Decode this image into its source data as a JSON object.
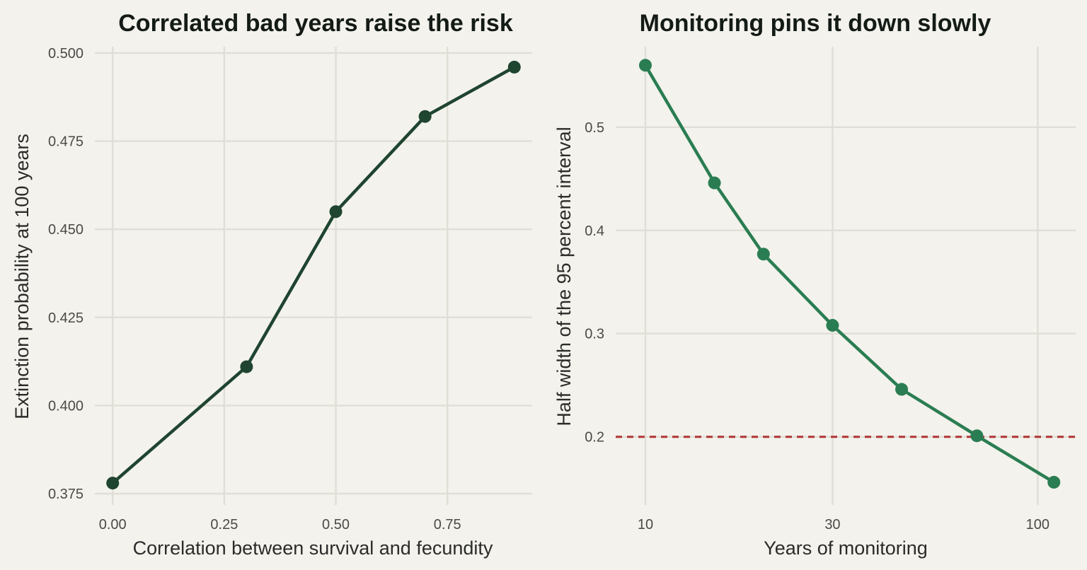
{
  "chart_data": [
    {
      "type": "line",
      "title": "Correlated bad years raise the risk",
      "xlabel": "Correlation between survival and fecundity",
      "ylabel": "Extinction probability at 100 years",
      "x_ticks": [
        "0.00",
        "0.25",
        "0.50",
        "0.75"
      ],
      "y_ticks": [
        "0.375",
        "0.400",
        "0.425",
        "0.450",
        "0.475",
        "0.500"
      ],
      "xlim": [
        -0.04,
        0.94
      ],
      "ylim": [
        0.3718,
        0.5018
      ],
      "grid": true,
      "color": "#1f4430",
      "series": [
        {
          "x": [
            0.0,
            0.3,
            0.5,
            0.7,
            0.9
          ],
          "y": [
            0.378,
            0.411,
            0.455,
            0.482,
            0.496
          ]
        }
      ]
    },
    {
      "type": "line",
      "title": "Monitoring pins it down slowly",
      "xlabel": "Years of monitoring",
      "ylabel": "Half width of the 95 percent interval",
      "x_scale": "log",
      "x_ticks": [
        "10",
        "30",
        "100"
      ],
      "y_ticks": [
        "0.2",
        "0.3",
        "0.4",
        "0.5"
      ],
      "xlim": [
        8.4,
        125
      ],
      "ylim": [
        0.134,
        0.578
      ],
      "grid": true,
      "color": "#2a7d52",
      "reference_line": {
        "y": 0.2,
        "style": "dashed",
        "color": "#b23a3a"
      },
      "series": [
        {
          "x": [
            10,
            15,
            20,
            30,
            45,
            70,
            110
          ],
          "y": [
            0.56,
            0.446,
            0.377,
            0.308,
            0.246,
            0.201,
            0.156
          ]
        }
      ]
    }
  ]
}
